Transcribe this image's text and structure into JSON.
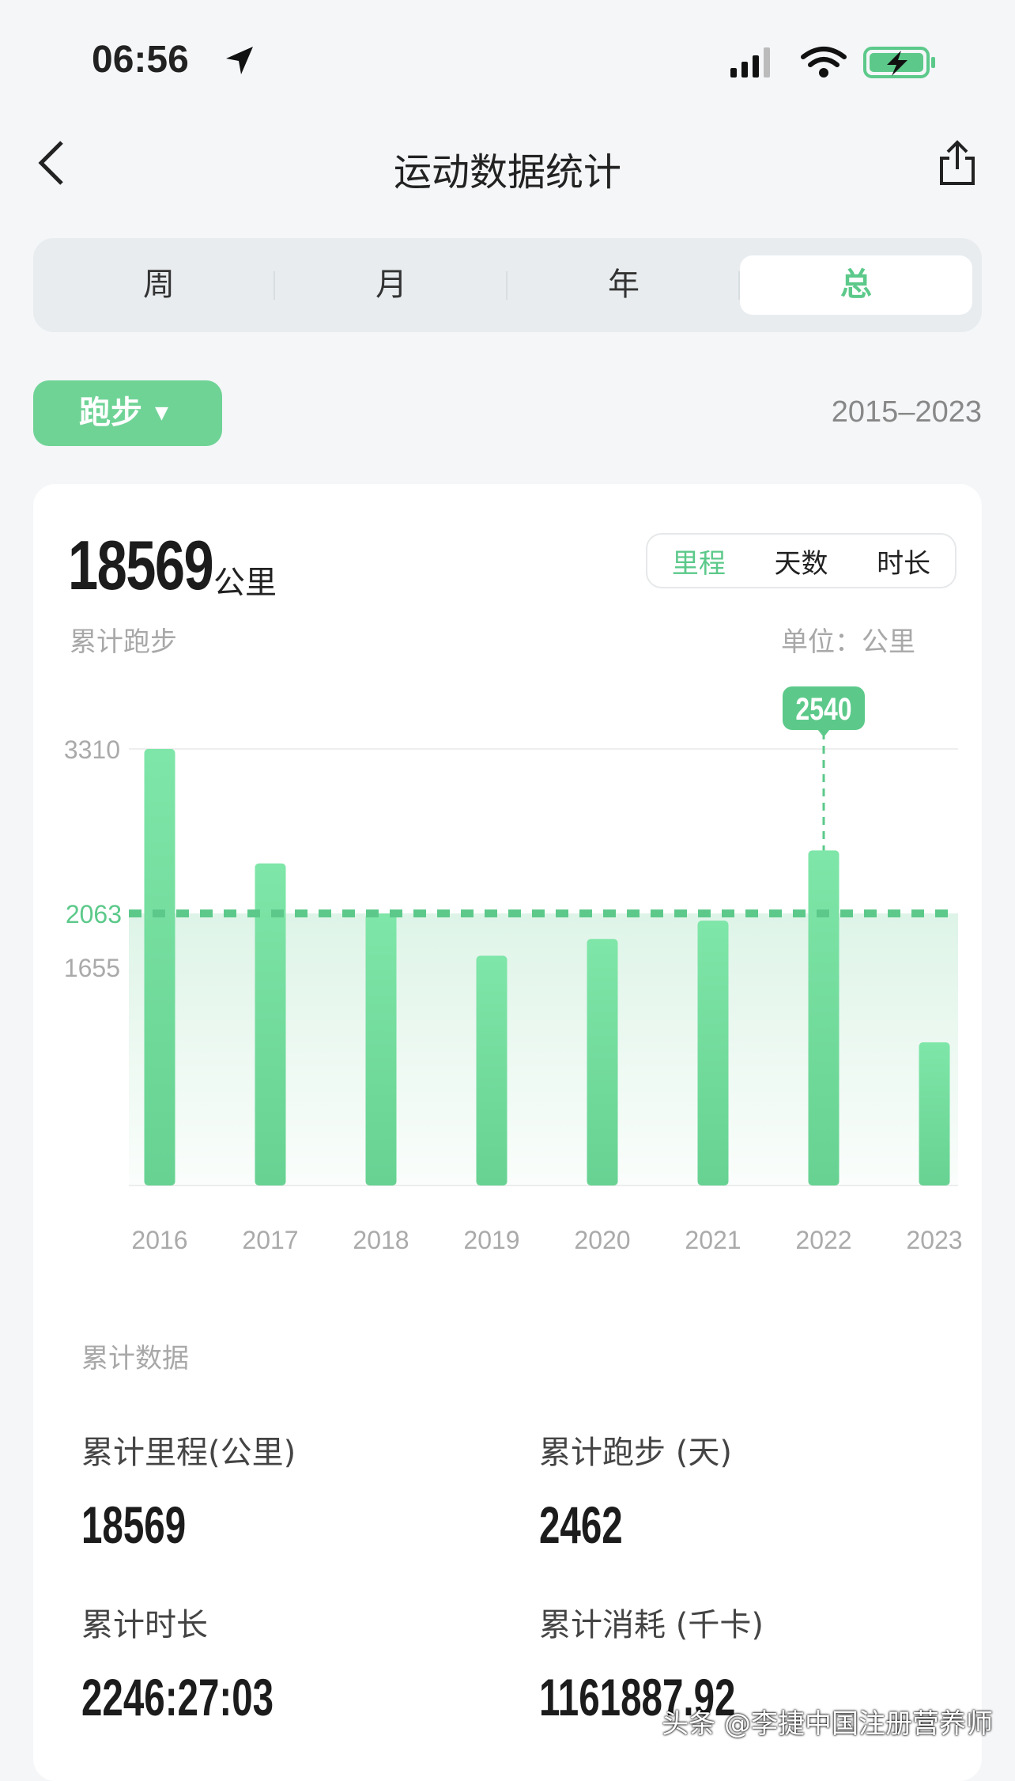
{
  "status": {
    "time": "06:56"
  },
  "header": {
    "title": "运动数据统计",
    "back_icon": "chevron-left-icon",
    "share_icon": "share-icon"
  },
  "tabs": [
    {
      "label": "周"
    },
    {
      "label": "月"
    },
    {
      "label": "年"
    },
    {
      "label": "总",
      "active": true
    }
  ],
  "sport_select": {
    "value": "跑步"
  },
  "date_range": "2015–2023",
  "summary": {
    "total": "18569",
    "unit": "公里",
    "caption": "累计跑步",
    "unit_label": "单位：公里",
    "metric_tabs": [
      {
        "label": "里程",
        "active": true
      },
      {
        "label": "天数"
      },
      {
        "label": "时长"
      }
    ]
  },
  "colors": {
    "accent": "#5cc98a",
    "bar": "#74dea0"
  },
  "chart_data": {
    "type": "bar",
    "categories": [
      "2016",
      "2017",
      "2018",
      "2019",
      "2020",
      "2021",
      "2022",
      "2023"
    ],
    "values": [
      3310,
      2442,
      2063,
      1742,
      1869,
      2008,
      2540,
      1085
    ],
    "yticks": [
      3310,
      1655
    ],
    "average": 2063,
    "highlight": {
      "category": "2022",
      "label": "2540"
    },
    "ylim": [
      0,
      3310
    ],
    "grid": true
  },
  "stats": {
    "title": "累计数据",
    "items": [
      {
        "label": "累计里程(公里)",
        "value": "18569"
      },
      {
        "label": "累计跑步 (天)",
        "value": "2462"
      },
      {
        "label": "累计时长",
        "value": "2246:27:03"
      },
      {
        "label": "累计消耗 (千卡)",
        "value": "1161887.92"
      }
    ]
  },
  "watermark": "头条 @李捷中国注册营养师"
}
